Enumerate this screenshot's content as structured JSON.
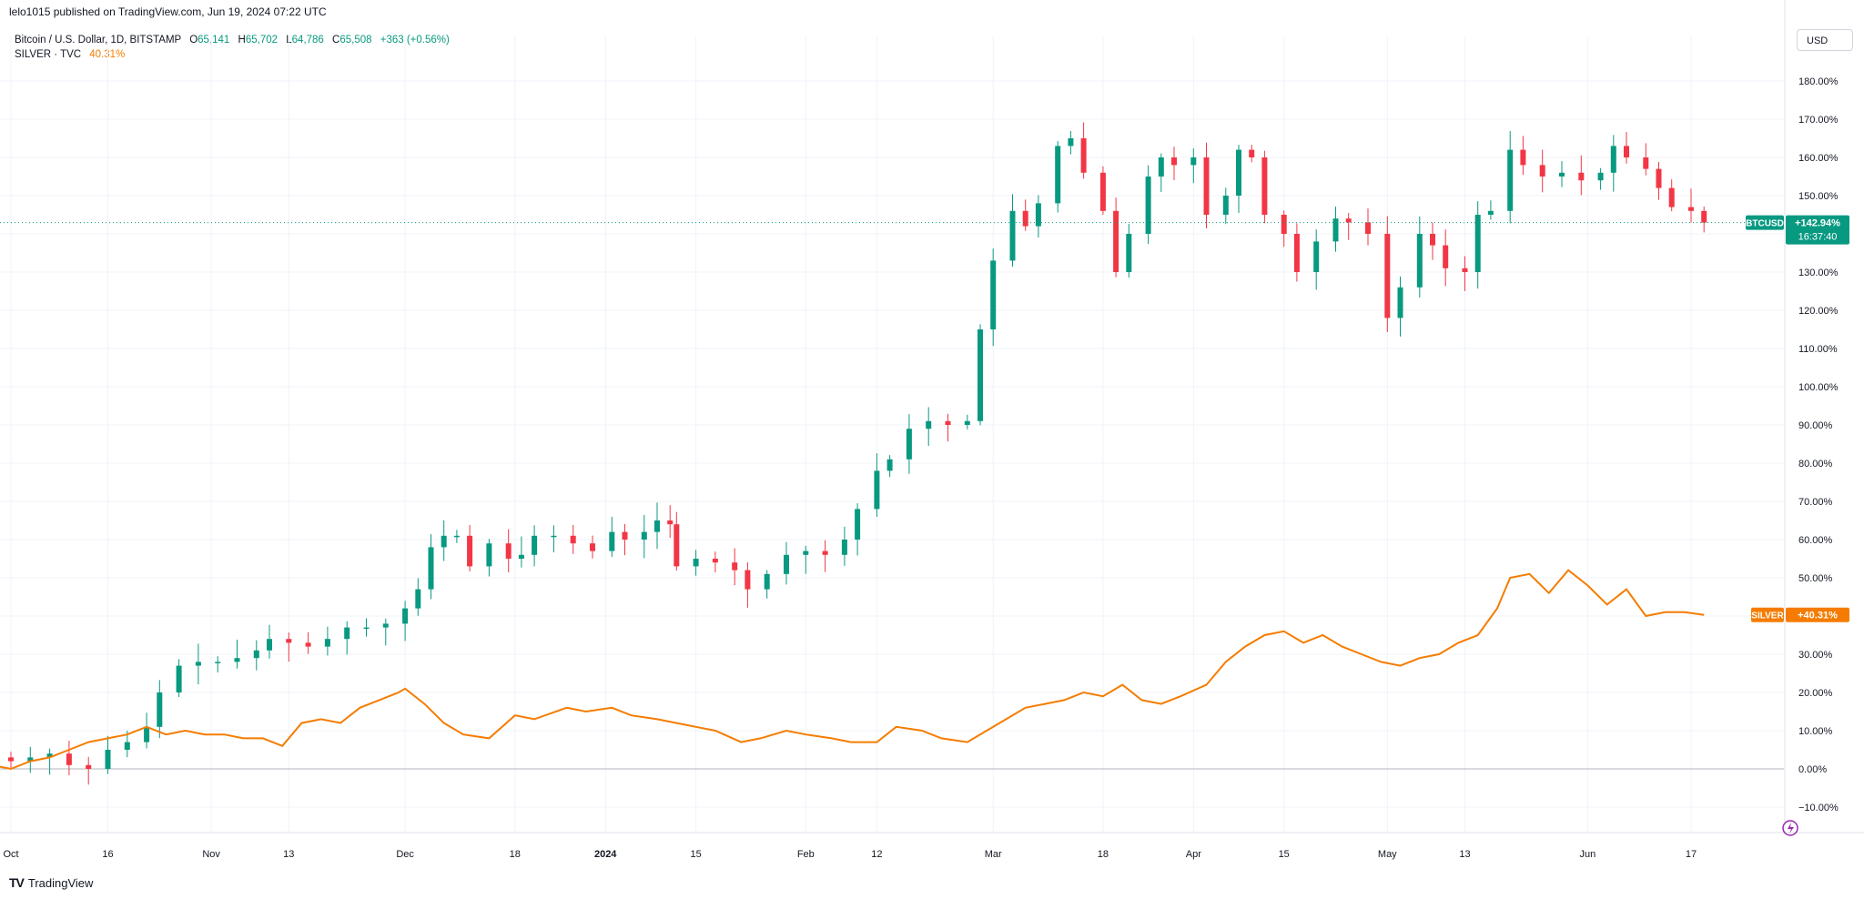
{
  "header": {
    "published": "lelo1015 published on TradingView.com, Jun 19, 2024 07:22 UTC"
  },
  "legend": {
    "btc_symbol": "Bitcoin / U.S. Dollar, 1D, BITSTAMP",
    "open_label": "O",
    "open": "65,141",
    "high_label": "H",
    "high": "65,702",
    "low_label": "L",
    "low": "64,786",
    "close_label": "C",
    "close": "65,508",
    "change": "+363 (+0.56%)",
    "silver_symbol": "SILVER · TVC",
    "silver_value": "40.31%"
  },
  "toolbar": {
    "currency": "USD"
  },
  "footer": {
    "brand": "TradingView",
    "logo_icon": "tradingview-logo-icon"
  },
  "colors": {
    "up": "#089981",
    "down": "#f23645",
    "silver": "#f57c00",
    "grid": "#f0f3fa"
  },
  "chart_data": {
    "type": "line",
    "scale": "percent",
    "ylim": [
      -15,
      185
    ],
    "y_ticks": [
      -10,
      0,
      10,
      20,
      30,
      40,
      50,
      60,
      70,
      80,
      90,
      100,
      110,
      120,
      130,
      140,
      150,
      160,
      170,
      180
    ],
    "y_tick_labels": [
      "−10.00%",
      "0.00%",
      "10.00%",
      "20.00%",
      "30.00%",
      "40.00%",
      "50.00%",
      "60.00%",
      "70.00%",
      "80.00%",
      "90.00%",
      "100.00%",
      "110.00%",
      "120.00%",
      "130.00%",
      "140.00%",
      "150.00%",
      "160.00%",
      "170.00%",
      "180.00%"
    ],
    "x_ticks": [
      {
        "label": "Oct",
        "date": "2023-10-01"
      },
      {
        "label": "16",
        "date": "2023-10-16"
      },
      {
        "label": "Nov",
        "date": "2023-11-01"
      },
      {
        "label": "13",
        "date": "2023-11-13"
      },
      {
        "label": "Dec",
        "date": "2023-12-01"
      },
      {
        "label": "18",
        "date": "2023-12-18"
      },
      {
        "label": "2024",
        "date": "2024-01-01",
        "bold": true
      },
      {
        "label": "15",
        "date": "2024-01-15"
      },
      {
        "label": "Feb",
        "date": "2024-02-01"
      },
      {
        "label": "12",
        "date": "2024-02-12"
      },
      {
        "label": "Mar",
        "date": "2024-03-01"
      },
      {
        "label": "18",
        "date": "2024-03-18"
      },
      {
        "label": "Apr",
        "date": "2024-04-01"
      },
      {
        "label": "15",
        "date": "2024-04-15"
      },
      {
        "label": "May",
        "date": "2024-05-01"
      },
      {
        "label": "13",
        "date": "2024-05-13"
      },
      {
        "label": "Jun",
        "date": "2024-06-01"
      },
      {
        "label": "17",
        "date": "2024-06-17"
      }
    ],
    "series": [
      {
        "name": "BTCUSD",
        "kind": "candlestick-close-percent",
        "points": [
          [
            "2023-09-28",
            3
          ],
          [
            "2023-10-01",
            2
          ],
          [
            "2023-10-04",
            3
          ],
          [
            "2023-10-07",
            4
          ],
          [
            "2023-10-10",
            1
          ],
          [
            "2023-10-13",
            0
          ],
          [
            "2023-10-16",
            5
          ],
          [
            "2023-10-19",
            7
          ],
          [
            "2023-10-22",
            11
          ],
          [
            "2023-10-24",
            20
          ],
          [
            "2023-10-27",
            27
          ],
          [
            "2023-10-30",
            28
          ],
          [
            "2023-11-02",
            28
          ],
          [
            "2023-11-05",
            29
          ],
          [
            "2023-11-08",
            31
          ],
          [
            "2023-11-10",
            34
          ],
          [
            "2023-11-13",
            33
          ],
          [
            "2023-11-16",
            32
          ],
          [
            "2023-11-19",
            34
          ],
          [
            "2023-11-22",
            37
          ],
          [
            "2023-11-25",
            37
          ],
          [
            "2023-11-28",
            38
          ],
          [
            "2023-12-01",
            42
          ],
          [
            "2023-12-03",
            47
          ],
          [
            "2023-12-05",
            58
          ],
          [
            "2023-12-07",
            61
          ],
          [
            "2023-12-09",
            61
          ],
          [
            "2023-12-11",
            53
          ],
          [
            "2023-12-14",
            59
          ],
          [
            "2023-12-17",
            55
          ],
          [
            "2023-12-19",
            56
          ],
          [
            "2023-12-21",
            61
          ],
          [
            "2023-12-24",
            61
          ],
          [
            "2023-12-27",
            59
          ],
          [
            "2023-12-30",
            57
          ],
          [
            "2024-01-02",
            62
          ],
          [
            "2024-01-04",
            60
          ],
          [
            "2024-01-07",
            62
          ],
          [
            "2024-01-09",
            65
          ],
          [
            "2024-01-11",
            64
          ],
          [
            "2024-01-12",
            53
          ],
          [
            "2024-01-15",
            55
          ],
          [
            "2024-01-18",
            54
          ],
          [
            "2024-01-21",
            52
          ],
          [
            "2024-01-23",
            47
          ],
          [
            "2024-01-26",
            51
          ],
          [
            "2024-01-29",
            56
          ],
          [
            "2024-02-01",
            57
          ],
          [
            "2024-02-04",
            56
          ],
          [
            "2024-02-07",
            60
          ],
          [
            "2024-02-09",
            68
          ],
          [
            "2024-02-12",
            78
          ],
          [
            "2024-02-14",
            81
          ],
          [
            "2024-02-17",
            89
          ],
          [
            "2024-02-20",
            91
          ],
          [
            "2024-02-23",
            90
          ],
          [
            "2024-02-26",
            91
          ],
          [
            "2024-02-28",
            115
          ],
          [
            "2024-03-01",
            133
          ],
          [
            "2024-03-04",
            146
          ],
          [
            "2024-03-06",
            142
          ],
          [
            "2024-03-08",
            148
          ],
          [
            "2024-03-11",
            163
          ],
          [
            "2024-03-13",
            165
          ],
          [
            "2024-03-15",
            156
          ],
          [
            "2024-03-18",
            146
          ],
          [
            "2024-03-20",
            130
          ],
          [
            "2024-03-22",
            140
          ],
          [
            "2024-03-25",
            155
          ],
          [
            "2024-03-27",
            160
          ],
          [
            "2024-03-29",
            158
          ],
          [
            "2024-04-01",
            160
          ],
          [
            "2024-04-03",
            145
          ],
          [
            "2024-04-06",
            150
          ],
          [
            "2024-04-08",
            162
          ],
          [
            "2024-04-10",
            160
          ],
          [
            "2024-04-12",
            145
          ],
          [
            "2024-04-15",
            140
          ],
          [
            "2024-04-17",
            130
          ],
          [
            "2024-04-20",
            138
          ],
          [
            "2024-04-23",
            144
          ],
          [
            "2024-04-25",
            143
          ],
          [
            "2024-04-28",
            140
          ],
          [
            "2024-05-01",
            118
          ],
          [
            "2024-05-03",
            126
          ],
          [
            "2024-05-06",
            140
          ],
          [
            "2024-05-08",
            137
          ],
          [
            "2024-05-10",
            131
          ],
          [
            "2024-05-13",
            130
          ],
          [
            "2024-05-15",
            145
          ],
          [
            "2024-05-17",
            146
          ],
          [
            "2024-05-20",
            162
          ],
          [
            "2024-05-22",
            158
          ],
          [
            "2024-05-25",
            155
          ],
          [
            "2024-05-28",
            156
          ],
          [
            "2024-05-31",
            154
          ],
          [
            "2024-06-03",
            156
          ],
          [
            "2024-06-05",
            163
          ],
          [
            "2024-06-07",
            160
          ],
          [
            "2024-06-10",
            157
          ],
          [
            "2024-06-12",
            152
          ],
          [
            "2024-06-14",
            147
          ],
          [
            "2024-06-17",
            146
          ],
          [
            "2024-06-19",
            142.94
          ]
        ]
      },
      {
        "name": "SILVER",
        "kind": "line-percent",
        "points": [
          [
            "2023-09-28",
            1
          ],
          [
            "2023-10-01",
            0
          ],
          [
            "2023-10-04",
            2
          ],
          [
            "2023-10-07",
            3
          ],
          [
            "2023-10-10",
            5
          ],
          [
            "2023-10-13",
            7
          ],
          [
            "2023-10-16",
            8
          ],
          [
            "2023-10-19",
            9
          ],
          [
            "2023-10-22",
            11
          ],
          [
            "2023-10-25",
            9
          ],
          [
            "2023-10-28",
            10
          ],
          [
            "2023-10-31",
            9
          ],
          [
            "2023-11-03",
            9
          ],
          [
            "2023-11-06",
            8
          ],
          [
            "2023-11-09",
            8
          ],
          [
            "2023-11-12",
            6
          ],
          [
            "2023-11-15",
            12
          ],
          [
            "2023-11-18",
            13
          ],
          [
            "2023-11-21",
            12
          ],
          [
            "2023-11-24",
            16
          ],
          [
            "2023-11-27",
            18
          ],
          [
            "2023-11-30",
            20
          ],
          [
            "2023-12-01",
            21
          ],
          [
            "2023-12-04",
            17
          ],
          [
            "2023-12-07",
            12
          ],
          [
            "2023-12-10",
            9
          ],
          [
            "2023-12-14",
            8
          ],
          [
            "2023-12-18",
            14
          ],
          [
            "2023-12-21",
            13
          ],
          [
            "2023-12-26",
            16
          ],
          [
            "2023-12-29",
            15
          ],
          [
            "2024-01-02",
            16
          ],
          [
            "2024-01-05",
            14
          ],
          [
            "2024-01-09",
            13
          ],
          [
            "2024-01-12",
            12
          ],
          [
            "2024-01-15",
            11
          ],
          [
            "2024-01-18",
            10
          ],
          [
            "2024-01-22",
            7
          ],
          [
            "2024-01-25",
            8
          ],
          [
            "2024-01-29",
            10
          ],
          [
            "2024-02-01",
            9
          ],
          [
            "2024-02-05",
            8
          ],
          [
            "2024-02-08",
            7
          ],
          [
            "2024-02-12",
            7
          ],
          [
            "2024-02-15",
            11
          ],
          [
            "2024-02-19",
            10
          ],
          [
            "2024-02-22",
            8
          ],
          [
            "2024-02-26",
            7
          ],
          [
            "2024-02-29",
            10
          ],
          [
            "2024-03-03",
            13
          ],
          [
            "2024-03-06",
            16
          ],
          [
            "2024-03-09",
            17
          ],
          [
            "2024-03-12",
            18
          ],
          [
            "2024-03-15",
            20
          ],
          [
            "2024-03-18",
            19
          ],
          [
            "2024-03-21",
            22
          ],
          [
            "2024-03-24",
            18
          ],
          [
            "2024-03-27",
            17
          ],
          [
            "2024-03-30",
            19
          ],
          [
            "2024-04-03",
            22
          ],
          [
            "2024-04-06",
            28
          ],
          [
            "2024-04-09",
            32
          ],
          [
            "2024-04-12",
            35
          ],
          [
            "2024-04-15",
            36
          ],
          [
            "2024-04-18",
            33
          ],
          [
            "2024-04-21",
            35
          ],
          [
            "2024-04-24",
            32
          ],
          [
            "2024-04-27",
            30
          ],
          [
            "2024-04-30",
            28
          ],
          [
            "2024-05-03",
            27
          ],
          [
            "2024-05-06",
            29
          ],
          [
            "2024-05-09",
            30
          ],
          [
            "2024-05-12",
            33
          ],
          [
            "2024-05-15",
            35
          ],
          [
            "2024-05-18",
            42
          ],
          [
            "2024-05-20",
            50
          ],
          [
            "2024-05-23",
            51
          ],
          [
            "2024-05-26",
            46
          ],
          [
            "2024-05-29",
            52
          ],
          [
            "2024-06-01",
            48
          ],
          [
            "2024-06-04",
            43
          ],
          [
            "2024-06-07",
            47
          ],
          [
            "2024-06-10",
            40
          ],
          [
            "2024-06-13",
            41
          ],
          [
            "2024-06-16",
            41
          ],
          [
            "2024-06-19",
            40.31
          ]
        ]
      }
    ],
    "price_labels": {
      "btc_tag": "BTCUSD",
      "btc_value": "+142.94%",
      "btc_countdown": "16:37:40",
      "silver_tag": "SILVER",
      "silver_value": "+40.31%"
    },
    "last_price_line": 142.94,
    "grid": true
  }
}
